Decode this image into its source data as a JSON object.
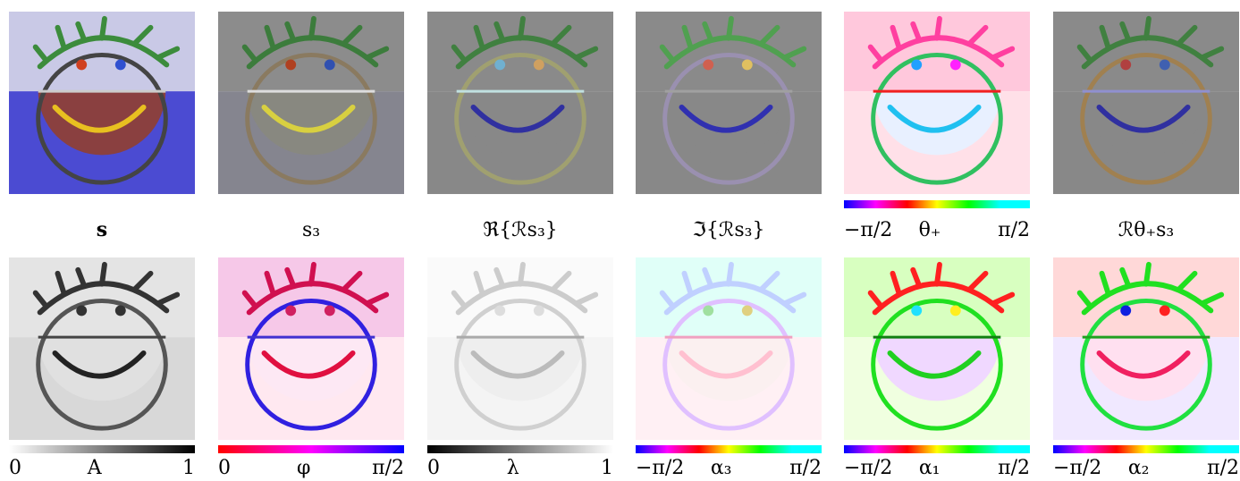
{
  "rows": [
    {
      "panels": [
        {
          "caption": "s"
        },
        {
          "caption": "s₃"
        },
        {
          "caption": "ℜ{ℛs₃}"
        },
        {
          "caption": "ℑ{ℛs₃}"
        },
        {
          "colorbar": {
            "min": "−π/2",
            "symbol": "θ₊",
            "max": "π/2"
          }
        },
        {
          "caption": "ℛθ₊s₃"
        }
      ]
    },
    {
      "panels": [
        {
          "colorbar": {
            "min": "0",
            "symbol": "A",
            "max": "1"
          }
        },
        {
          "colorbar": {
            "min": "0",
            "symbol": "φ",
            "max": "π/2"
          }
        },
        {
          "colorbar": {
            "min": "0",
            "symbol": "λ",
            "max": "1"
          }
        },
        {
          "colorbar": {
            "min": "−π/2",
            "symbol": "α₃",
            "max": "π/2"
          }
        },
        {
          "colorbar": {
            "min": "−π/2",
            "symbol": "α₁",
            "max": "π/2"
          }
        },
        {
          "colorbar": {
            "min": "−π/2",
            "symbol": "α₂",
            "max": "π/2"
          }
        }
      ]
    }
  ]
}
